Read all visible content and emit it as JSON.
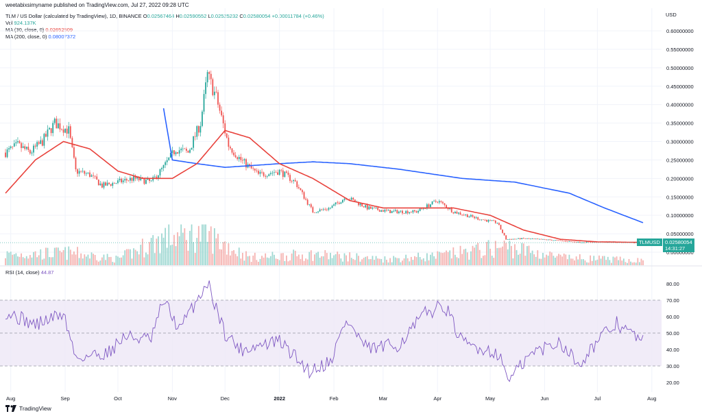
{
  "header": {
    "credit": "weetabixsimyname published on TradingView.com, Jul 27, 2022 09:28 UTC",
    "symbol_line": "TLM / US Dollar (calculated by TradingView), 1D, BINANCE",
    "ohlc": {
      "o_label": "O",
      "o": "0.02567464",
      "h_label": "H",
      "h": "0.02590552",
      "l_label": "L",
      "l": "0.02525232",
      "c_label": "C",
      "c": "0.02580054",
      "change": "+0.00011784 (+0.46%)"
    },
    "vol_label": "Vol",
    "vol": "924.137K",
    "ma30_label": "MA (30, close, 0)",
    "ma30": "0.02652509",
    "ma200_label": "MA (200, close, 0)",
    "ma200": "0.08007372",
    "rsi_label": "RSI (14, close)",
    "rsi": "44.87"
  },
  "price_axis_unit": "USD",
  "last_price_tag": {
    "symbol": "TLMUSD",
    "price": "0.02580054",
    "countdown": "14:31:27"
  },
  "brand": "TradingView",
  "colors": {
    "up": "#26a69a",
    "down": "#ef5350",
    "ma30": "#e8413b",
    "ma200": "#2962ff",
    "rsi": "#7e57c2",
    "rsi_band": "#ede7f6"
  },
  "chart_data": [
    {
      "type": "candlestick",
      "y_scale": "linear",
      "ylim": [
        0,
        0.6
      ],
      "y_ticks": [
        "0.60000000",
        "0.55000000",
        "0.50000000",
        "0.45000000",
        "0.40000000",
        "0.35000000",
        "0.30000000",
        "0.25000000",
        "0.20000000",
        "0.15000000",
        "0.10000000",
        "0.05000000",
        "0.00000000"
      ],
      "x_ticks": [
        "Aug",
        "Sep",
        "Oct",
        "Nov",
        "Dec",
        "2022",
        "Feb",
        "Mar",
        "Apr",
        "May",
        "Jun",
        "Jul",
        "Aug"
      ],
      "x_tick_dates": [
        "2021-08-01",
        "2021-09-01",
        "2021-10-01",
        "2021-11-01",
        "2021-12-01",
        "2022-01-01",
        "2022-02-01",
        "2022-03-01",
        "2022-04-01",
        "2022-05-01",
        "2022-06-01",
        "2022-07-01",
        "2022-08-01"
      ],
      "date_range": [
        "2021-07-29",
        "2022-07-27"
      ],
      "price_anchors": [
        {
          "d": "2021-07-29",
          "c": 0.27
        },
        {
          "d": "2021-08-05",
          "c": 0.29
        },
        {
          "d": "2021-08-12",
          "c": 0.27
        },
        {
          "d": "2021-08-19",
          "c": 0.3
        },
        {
          "d": "2021-08-26",
          "c": 0.35
        },
        {
          "d": "2021-09-03",
          "c": 0.33
        },
        {
          "d": "2021-09-07",
          "c": 0.22
        },
        {
          "d": "2021-09-15",
          "c": 0.21
        },
        {
          "d": "2021-09-22",
          "c": 0.18
        },
        {
          "d": "2021-10-01",
          "c": 0.19
        },
        {
          "d": "2021-10-10",
          "c": 0.2
        },
        {
          "d": "2021-10-20",
          "c": 0.19
        },
        {
          "d": "2021-10-27",
          "c": 0.23
        },
        {
          "d": "2021-11-03",
          "c": 0.28
        },
        {
          "d": "2021-11-10",
          "c": 0.27
        },
        {
          "d": "2021-11-17",
          "c": 0.35
        },
        {
          "d": "2021-11-21",
          "c": 0.48
        },
        {
          "d": "2021-11-26",
          "c": 0.42
        },
        {
          "d": "2021-12-03",
          "c": 0.29
        },
        {
          "d": "2021-12-10",
          "c": 0.25
        },
        {
          "d": "2021-12-20",
          "c": 0.21
        },
        {
          "d": "2022-01-01",
          "c": 0.22
        },
        {
          "d": "2022-01-10",
          "c": 0.19
        },
        {
          "d": "2022-01-20",
          "c": 0.11
        },
        {
          "d": "2022-01-30",
          "c": 0.12
        },
        {
          "d": "2022-02-08",
          "c": 0.15
        },
        {
          "d": "2022-02-20",
          "c": 0.12
        },
        {
          "d": "2022-03-05",
          "c": 0.11
        },
        {
          "d": "2022-03-20",
          "c": 0.11
        },
        {
          "d": "2022-04-01",
          "c": 0.14
        },
        {
          "d": "2022-04-10",
          "c": 0.11
        },
        {
          "d": "2022-04-25",
          "c": 0.09
        },
        {
          "d": "2022-05-05",
          "c": 0.08
        },
        {
          "d": "2022-05-10",
          "c": 0.035
        },
        {
          "d": "2022-05-20",
          "c": 0.037
        },
        {
          "d": "2022-06-05",
          "c": 0.033
        },
        {
          "d": "2022-06-20",
          "c": 0.027
        },
        {
          "d": "2022-07-05",
          "c": 0.028
        },
        {
          "d": "2022-07-27",
          "c": 0.0258
        }
      ],
      "ma30_anchors": [
        {
          "d": "2021-07-29",
          "v": 0.16
        },
        {
          "d": "2021-08-15",
          "v": 0.25
        },
        {
          "d": "2021-08-31",
          "v": 0.3
        },
        {
          "d": "2021-09-15",
          "v": 0.28
        },
        {
          "d": "2021-10-01",
          "v": 0.22
        },
        {
          "d": "2021-10-15",
          "v": 0.2
        },
        {
          "d": "2021-11-01",
          "v": 0.2
        },
        {
          "d": "2021-11-15",
          "v": 0.24
        },
        {
          "d": "2021-12-01",
          "v": 0.33
        },
        {
          "d": "2021-12-15",
          "v": 0.31
        },
        {
          "d": "2022-01-01",
          "v": 0.24
        },
        {
          "d": "2022-01-20",
          "v": 0.2
        },
        {
          "d": "2022-02-10",
          "v": 0.14
        },
        {
          "d": "2022-03-01",
          "v": 0.12
        },
        {
          "d": "2022-03-20",
          "v": 0.12
        },
        {
          "d": "2022-04-10",
          "v": 0.12
        },
        {
          "d": "2022-05-01",
          "v": 0.1
        },
        {
          "d": "2022-05-20",
          "v": 0.06
        },
        {
          "d": "2022-06-10",
          "v": 0.035
        },
        {
          "d": "2022-07-01",
          "v": 0.028
        },
        {
          "d": "2022-07-27",
          "v": 0.0265
        }
      ],
      "ma200_anchors": [
        {
          "d": "2021-10-27",
          "v": 0.39
        },
        {
          "d": "2021-11-01",
          "v": 0.25
        },
        {
          "d": "2021-11-15",
          "v": 0.24
        },
        {
          "d": "2021-12-01",
          "v": 0.23
        },
        {
          "d": "2022-01-01",
          "v": 0.24
        },
        {
          "d": "2022-01-20",
          "v": 0.245
        },
        {
          "d": "2022-02-10",
          "v": 0.24
        },
        {
          "d": "2022-03-10",
          "v": 0.225
        },
        {
          "d": "2022-04-15",
          "v": 0.2
        },
        {
          "d": "2022-05-15",
          "v": 0.19
        },
        {
          "d": "2022-06-15",
          "v": 0.16
        },
        {
          "d": "2022-07-05",
          "v": 0.12
        },
        {
          "d": "2022-07-27",
          "v": 0.08
        }
      ],
      "volume_anchors": [
        {
          "d": "2021-07-29",
          "v": 0.35
        },
        {
          "d": "2021-09-05",
          "v": 0.4
        },
        {
          "d": "2021-10-01",
          "v": 0.2
        },
        {
          "d": "2021-10-27",
          "v": 0.9
        },
        {
          "d": "2021-11-20",
          "v": 1.0
        },
        {
          "d": "2021-12-15",
          "v": 0.25
        },
        {
          "d": "2022-01-20",
          "v": 0.35
        },
        {
          "d": "2022-03-01",
          "v": 0.2
        },
        {
          "d": "2022-04-01",
          "v": 0.3
        },
        {
          "d": "2022-05-10",
          "v": 0.6
        },
        {
          "d": "2022-06-10",
          "v": 0.25
        },
        {
          "d": "2022-07-27",
          "v": 0.15
        }
      ]
    },
    {
      "type": "line",
      "name": "RSI (14, close)",
      "ylim": [
        15,
        85
      ],
      "y_ticks": [
        "80.00",
        "70.00",
        "60.00",
        "50.00",
        "40.00",
        "30.00",
        "20.00"
      ],
      "band": [
        30,
        70
      ],
      "midline": 50,
      "anchors": [
        {
          "d": "2021-07-29",
          "v": 63
        },
        {
          "d": "2021-08-15",
          "v": 55
        },
        {
          "d": "2021-08-31",
          "v": 62
        },
        {
          "d": "2021-09-07",
          "v": 35
        },
        {
          "d": "2021-09-25",
          "v": 38
        },
        {
          "d": "2021-10-05",
          "v": 48
        },
        {
          "d": "2021-10-20",
          "v": 46
        },
        {
          "d": "2021-10-27",
          "v": 70
        },
        {
          "d": "2021-11-05",
          "v": 52
        },
        {
          "d": "2021-11-21",
          "v": 81
        },
        {
          "d": "2021-12-01",
          "v": 50
        },
        {
          "d": "2021-12-10",
          "v": 40
        },
        {
          "d": "2022-01-01",
          "v": 45
        },
        {
          "d": "2022-01-18",
          "v": 27
        },
        {
          "d": "2022-01-30",
          "v": 33
        },
        {
          "d": "2022-02-08",
          "v": 58
        },
        {
          "d": "2022-02-20",
          "v": 40
        },
        {
          "d": "2022-03-10",
          "v": 43
        },
        {
          "d": "2022-03-25",
          "v": 62
        },
        {
          "d": "2022-04-05",
          "v": 67
        },
        {
          "d": "2022-04-15",
          "v": 44
        },
        {
          "d": "2022-05-05",
          "v": 38
        },
        {
          "d": "2022-05-12",
          "v": 22
        },
        {
          "d": "2022-05-25",
          "v": 38
        },
        {
          "d": "2022-06-10",
          "v": 45
        },
        {
          "d": "2022-06-20",
          "v": 31
        },
        {
          "d": "2022-07-01",
          "v": 45
        },
        {
          "d": "2022-07-12",
          "v": 56
        },
        {
          "d": "2022-07-20",
          "v": 50
        },
        {
          "d": "2022-07-27",
          "v": 44.87
        }
      ]
    }
  ]
}
